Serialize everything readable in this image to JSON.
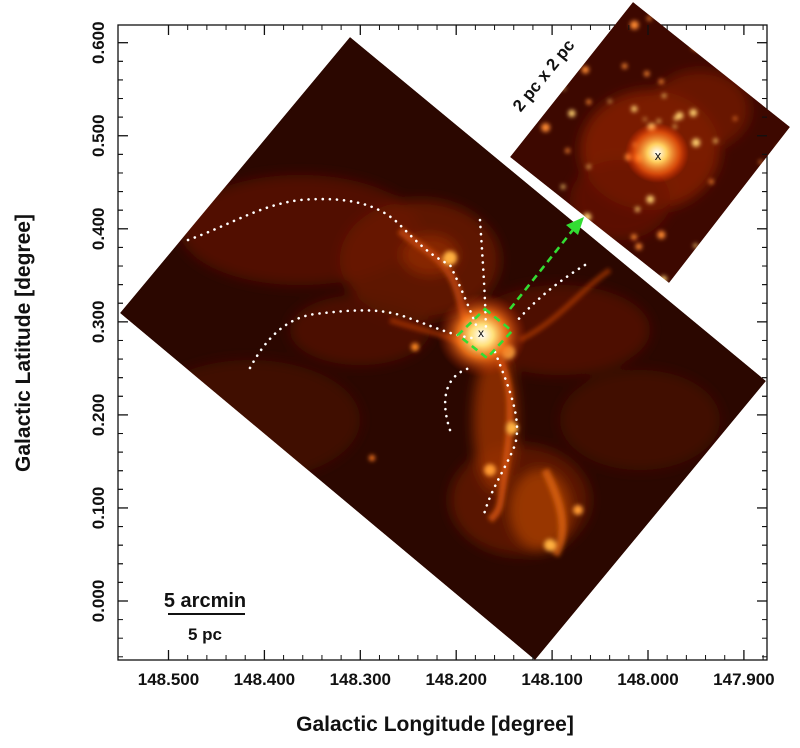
{
  "x_axis": {
    "label": "Galactic Longitude [degree]",
    "ticks": [
      {
        "value": 148.5,
        "label": "148.500"
      },
      {
        "value": 148.4,
        "label": "148.400"
      },
      {
        "value": 148.3,
        "label": "148.300"
      },
      {
        "value": 148.2,
        "label": "148.200"
      },
      {
        "value": 148.1,
        "label": "148.100"
      },
      {
        "value": 148.0,
        "label": "148.000"
      },
      {
        "value": 147.9,
        "label": "147.900"
      }
    ]
  },
  "y_axis": {
    "label": "Galactic Latitude [degree]",
    "ticks": [
      {
        "value": 0.0,
        "label": "0.000"
      },
      {
        "value": 0.1,
        "label": "0.100"
      },
      {
        "value": 0.2,
        "label": "0.200"
      },
      {
        "value": 0.3,
        "label": "0.300"
      },
      {
        "value": 0.4,
        "label": "0.400"
      },
      {
        "value": 0.5,
        "label": "0.500"
      },
      {
        "value": 0.6,
        "label": "0.600"
      }
    ]
  },
  "scale_bar": {
    "angular_label": "5 arcmin",
    "physical_label": "5 pc"
  },
  "inset": {
    "size_label": "2 pc x 2 pc",
    "marker": "x"
  },
  "center_marker": "x",
  "colors": {
    "arrow": "#33dd33",
    "filaments": "#ffffff",
    "background": "#2a0600"
  }
}
